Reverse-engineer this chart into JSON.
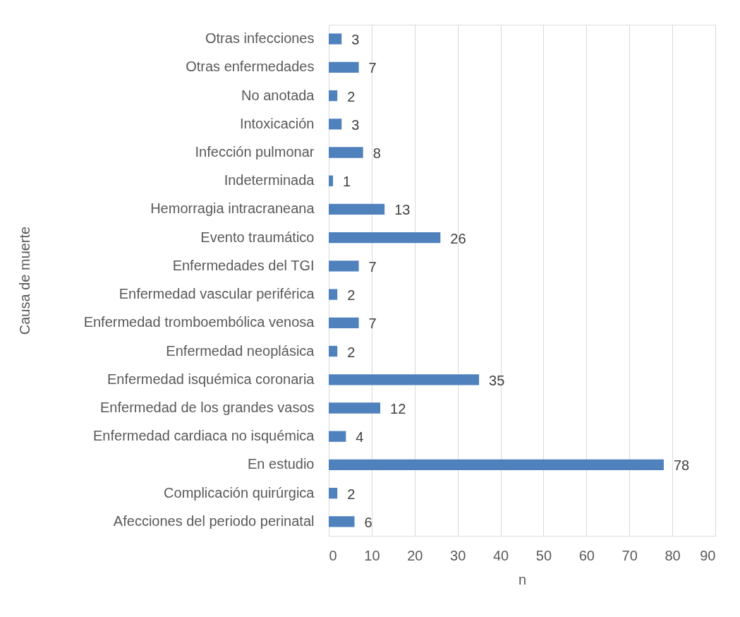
{
  "chart_data": {
    "type": "bar",
    "orientation": "horizontal",
    "categories": [
      "Otras infecciones",
      "Otras enfermedades ",
      "No anotada",
      "Intoxicación",
      "Infección pulmonar",
      "Indeterminada",
      "Hemorragia intracraneana",
      "Evento traumático",
      "Enfermedades del TGI",
      "Enfermedad vascular periférica",
      "Enfermedad tromboembólica venosa",
      "Enfermedad neoplásica",
      "Enfermedad isquémica coronaria",
      "Enfermedad de los grandes vasos",
      "Enfermedad cardiaca no isquémica",
      "En estudio",
      "Complicación quirúrgica",
      "Afecciones del periodo perinatal"
    ],
    "values": [
      3,
      7,
      2,
      3,
      8,
      1,
      13,
      26,
      7,
      2,
      7,
      2,
      35,
      12,
      4,
      78,
      2,
      6
    ],
    "color": "#4f81bd",
    "xlim": [
      0,
      90
    ],
    "xticks": [
      0,
      10,
      20,
      30,
      40,
      50,
      60,
      70,
      80,
      90
    ],
    "xlabel": "n",
    "ylabel": "Causa de muerte",
    "grid": "x",
    "data_labels": true
  }
}
